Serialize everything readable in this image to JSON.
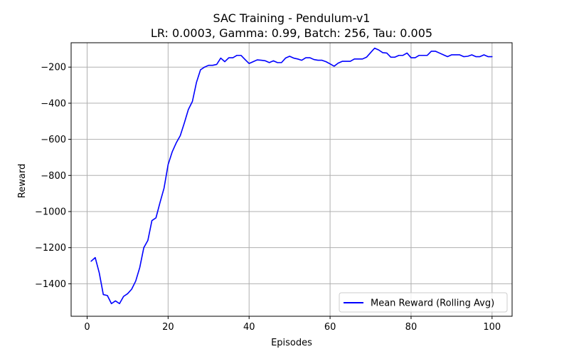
{
  "chart_data": {
    "type": "line",
    "title": "SAC Training - Pendulum-v1",
    "subtitle": "LR: 0.0003, Gamma: 0.99, Batch: 256, Tau: 0.005",
    "xlabel": "Episodes",
    "ylabel": "Reward",
    "xlim": [
      -3.95,
      104.95
    ],
    "ylim": [
      -1580,
      -65
    ],
    "xticks": [
      0,
      20,
      40,
      60,
      80,
      100
    ],
    "yticks": [
      -1400,
      -1200,
      -1000,
      -800,
      -600,
      -400,
      -200
    ],
    "xtick_labels": [
      "0",
      "20",
      "40",
      "60",
      "80",
      "100"
    ],
    "ytick_labels": [
      "−1400",
      "−1200",
      "−1000",
      "−800",
      "−600",
      "−400",
      "−200"
    ],
    "grid": true,
    "legend_position": "lower-right",
    "series": [
      {
        "name": "Mean Reward (Rolling Avg)",
        "color": "#0000ff",
        "x": [
          1,
          2,
          3,
          4,
          5,
          6,
          7,
          8,
          9,
          10,
          11,
          12,
          13,
          14,
          15,
          16,
          17,
          18,
          19,
          20,
          21,
          22,
          23,
          24,
          25,
          26,
          27,
          28,
          29,
          30,
          31,
          32,
          33,
          34,
          35,
          36,
          37,
          38,
          39,
          40,
          41,
          42,
          43,
          44,
          45,
          46,
          47,
          48,
          49,
          50,
          51,
          52,
          53,
          54,
          55,
          56,
          57,
          58,
          59,
          60,
          61,
          62,
          63,
          64,
          65,
          66,
          67,
          68,
          69,
          70,
          71,
          72,
          73,
          74,
          75,
          76,
          77,
          78,
          79,
          80,
          81,
          82,
          83,
          84,
          85,
          86,
          87,
          88,
          89,
          90,
          91,
          92,
          93,
          94,
          95,
          96,
          97,
          98,
          99,
          100
        ],
        "y": [
          -1275,
          -1255,
          -1340,
          -1460,
          -1465,
          -1510,
          -1495,
          -1510,
          -1470,
          -1455,
          -1430,
          -1385,
          -1310,
          -1200,
          -1160,
          -1050,
          -1035,
          -950,
          -870,
          -740,
          -670,
          -620,
          -580,
          -510,
          -435,
          -390,
          -285,
          -215,
          -200,
          -190,
          -190,
          -185,
          -150,
          -170,
          -148,
          -148,
          -135,
          -135,
          -158,
          -180,
          -170,
          -160,
          -162,
          -165,
          -175,
          -165,
          -175,
          -175,
          -150,
          -140,
          -150,
          -155,
          -162,
          -148,
          -148,
          -158,
          -162,
          -162,
          -170,
          -182,
          -195,
          -178,
          -168,
          -168,
          -168,
          -155,
          -155,
          -155,
          -145,
          -120,
          -95,
          -105,
          -120,
          -122,
          -145,
          -145,
          -135,
          -135,
          -122,
          -148,
          -148,
          -135,
          -135,
          -135,
          -112,
          -112,
          -122,
          -132,
          -142,
          -132,
          -132,
          -132,
          -142,
          -140,
          -132,
          -142,
          -142,
          -132,
          -142,
          -142
        ]
      }
    ]
  }
}
